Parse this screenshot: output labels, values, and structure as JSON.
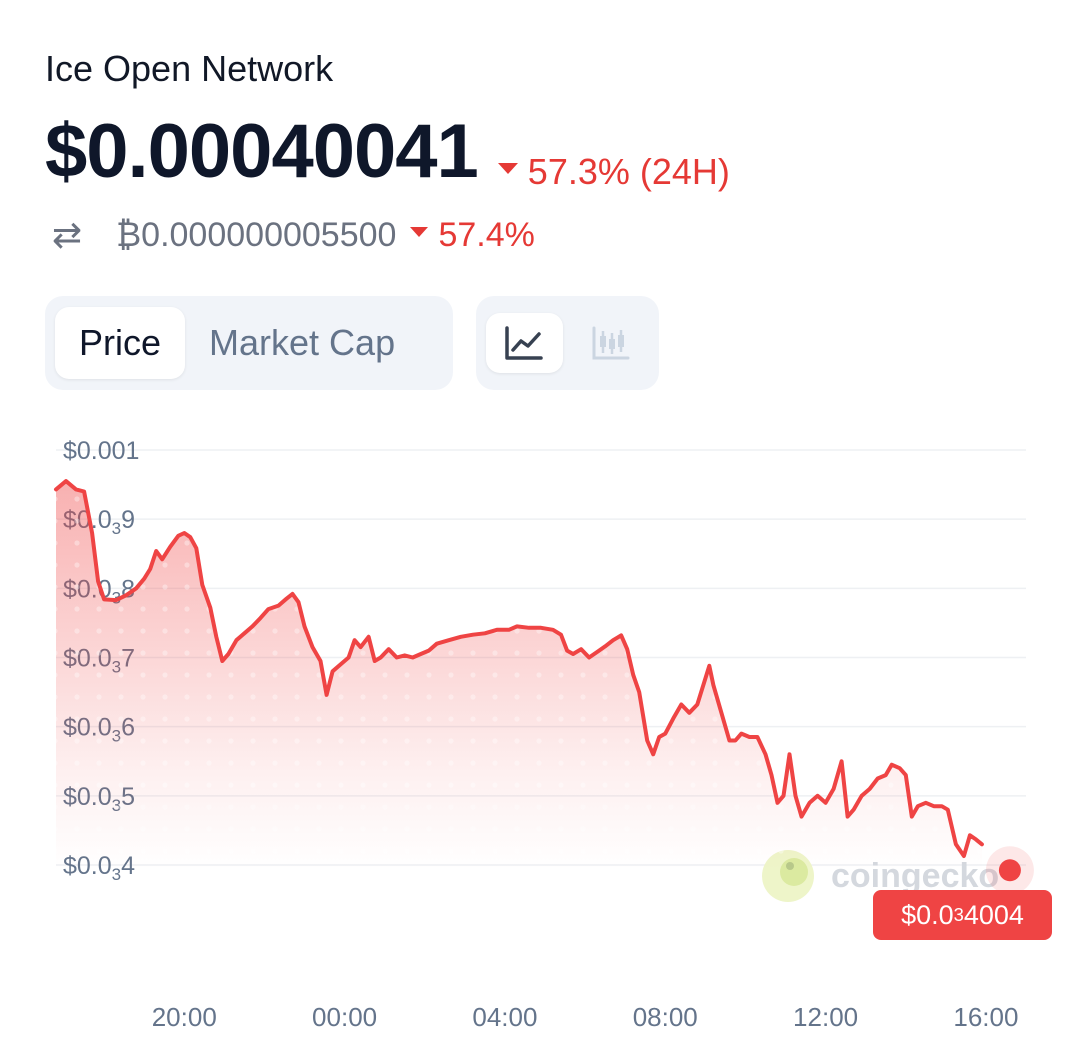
{
  "header": {
    "coin_name": "Ice Open Network",
    "price": "$0.00040041",
    "change_24h": "57.3% (24H)",
    "btc_price": "₿0.000000005500",
    "btc_change": "57.4%"
  },
  "tabs": [
    {
      "label": "Price",
      "active": true
    },
    {
      "label": "Market Cap",
      "active": false
    }
  ],
  "chart_toggles": [
    {
      "icon": "line-chart-icon",
      "active": true
    },
    {
      "icon": "candlestick-chart-icon",
      "active": false
    }
  ],
  "colors": {
    "down": "#e53935",
    "line": "#ef4444",
    "text_muted": "#64748b",
    "segment_bg": "#f1f4f9"
  },
  "watermark": "coingecko",
  "last_price_label": {
    "pre": "$0.0",
    "sub": "3",
    "post": "4004"
  },
  "chart_data": {
    "type": "area",
    "ylim": [
      0.0004,
      0.001
    ],
    "yticks": [
      {
        "value": 0.001,
        "pre": "$0.001",
        "sub": "",
        "post": ""
      },
      {
        "value": 0.0009,
        "pre": "$0.0",
        "sub": "3",
        "post": "9"
      },
      {
        "value": 0.0008,
        "pre": "$0.0",
        "sub": "3",
        "post": "8"
      },
      {
        "value": 0.0007,
        "pre": "$0.0",
        "sub": "3",
        "post": "7"
      },
      {
        "value": 0.0006,
        "pre": "$0.0",
        "sub": "3",
        "post": "6"
      },
      {
        "value": 0.0005,
        "pre": "$0.0",
        "sub": "3",
        "post": "5"
      },
      {
        "value": 0.0004,
        "pre": "$0.0",
        "sub": "3",
        "post": "4"
      }
    ],
    "xticks": [
      {
        "hour": 20,
        "label": "20:00"
      },
      {
        "hour": 24,
        "label": "00:00"
      },
      {
        "hour": 28,
        "label": "04:00"
      },
      {
        "hour": 32,
        "label": "08:00"
      },
      {
        "hour": 36,
        "label": "12:00"
      },
      {
        "hour": 40,
        "label": "16:00"
      }
    ],
    "xlim": [
      16.8,
      41.0
    ],
    "series": [
      {
        "points": [
          [
            16.8,
            0.000943
          ],
          [
            17.05,
            0.000955
          ],
          [
            17.3,
            0.000943
          ],
          [
            17.5,
            0.00094
          ],
          [
            17.7,
            0.00088
          ],
          [
            17.85,
            0.00081
          ],
          [
            18.0,
            0.000784
          ],
          [
            18.3,
            0.000783
          ],
          [
            18.55,
            0.00079
          ],
          [
            18.8,
            0.0008
          ],
          [
            19.0,
            0.000814
          ],
          [
            19.15,
            0.000828
          ],
          [
            19.3,
            0.000854
          ],
          [
            19.45,
            0.000842
          ],
          [
            19.65,
            0.00086
          ],
          [
            19.85,
            0.000876
          ],
          [
            20.0,
            0.00088
          ],
          [
            20.15,
            0.000874
          ],
          [
            20.3,
            0.000858
          ],
          [
            20.45,
            0.000805
          ],
          [
            20.65,
            0.000772
          ],
          [
            20.8,
            0.00073
          ],
          [
            20.95,
            0.000695
          ],
          [
            21.1,
            0.000705
          ],
          [
            21.3,
            0.000725
          ],
          [
            21.5,
            0.000735
          ],
          [
            21.7,
            0.000745
          ],
          [
            21.9,
            0.000757
          ],
          [
            22.1,
            0.00077
          ],
          [
            22.35,
            0.000775
          ],
          [
            22.55,
            0.000785
          ],
          [
            22.7,
            0.000792
          ],
          [
            22.85,
            0.00078
          ],
          [
            23.0,
            0.000745
          ],
          [
            23.2,
            0.000715
          ],
          [
            23.4,
            0.000695
          ],
          [
            23.55,
            0.000646
          ],
          [
            23.7,
            0.00068
          ],
          [
            23.9,
            0.00069
          ],
          [
            24.1,
            0.0007
          ],
          [
            24.25,
            0.000725
          ],
          [
            24.4,
            0.000715
          ],
          [
            24.6,
            0.00073
          ],
          [
            24.75,
            0.000695
          ],
          [
            24.9,
            0.0007
          ],
          [
            25.1,
            0.000712
          ],
          [
            25.3,
            0.0007
          ],
          [
            25.5,
            0.000703
          ],
          [
            25.7,
            0.0007
          ],
          [
            25.9,
            0.000705
          ],
          [
            26.1,
            0.00071
          ],
          [
            26.3,
            0.00072
          ],
          [
            26.6,
            0.000725
          ],
          [
            26.9,
            0.00073
          ],
          [
            27.2,
            0.000733
          ],
          [
            27.5,
            0.000735
          ],
          [
            27.8,
            0.00074
          ],
          [
            28.1,
            0.00074
          ],
          [
            28.3,
            0.000745
          ],
          [
            28.6,
            0.000743
          ],
          [
            28.9,
            0.000743
          ],
          [
            29.2,
            0.00074
          ],
          [
            29.4,
            0.000733
          ],
          [
            29.55,
            0.00071
          ],
          [
            29.7,
            0.000705
          ],
          [
            29.9,
            0.000712
          ],
          [
            30.1,
            0.0007
          ],
          [
            30.3,
            0.000708
          ],
          [
            30.5,
            0.000716
          ],
          [
            30.7,
            0.000725
          ],
          [
            30.9,
            0.000732
          ],
          [
            31.05,
            0.000712
          ],
          [
            31.2,
            0.000675
          ],
          [
            31.35,
            0.00065
          ],
          [
            31.55,
            0.00058
          ],
          [
            31.7,
            0.00056
          ],
          [
            31.85,
            0.000585
          ],
          [
            32.0,
            0.00059
          ],
          [
            32.2,
            0.000612
          ],
          [
            32.4,
            0.000632
          ],
          [
            32.6,
            0.00062
          ],
          [
            32.8,
            0.000632
          ],
          [
            32.95,
            0.00066
          ],
          [
            33.1,
            0.000688
          ],
          [
            33.2,
            0.00066
          ],
          [
            33.4,
            0.00062
          ],
          [
            33.6,
            0.00058
          ],
          [
            33.75,
            0.00058
          ],
          [
            33.9,
            0.00059
          ],
          [
            34.1,
            0.000585
          ],
          [
            34.3,
            0.000585
          ],
          [
            34.5,
            0.00056
          ],
          [
            34.65,
            0.00053
          ],
          [
            34.8,
            0.00049
          ],
          [
            34.95,
            0.0005
          ],
          [
            35.1,
            0.00056
          ],
          [
            35.25,
            0.0005
          ],
          [
            35.4,
            0.00047
          ],
          [
            35.6,
            0.00049
          ],
          [
            35.8,
            0.0005
          ],
          [
            36.0,
            0.00049
          ],
          [
            36.2,
            0.00051
          ],
          [
            36.4,
            0.00055
          ],
          [
            36.55,
            0.00047
          ],
          [
            36.7,
            0.00048
          ],
          [
            36.9,
            0.0005
          ],
          [
            37.1,
            0.00051
          ],
          [
            37.3,
            0.000525
          ],
          [
            37.5,
            0.00053
          ],
          [
            37.65,
            0.000545
          ],
          [
            37.85,
            0.00054
          ],
          [
            38.0,
            0.00053
          ],
          [
            38.15,
            0.00047
          ],
          [
            38.3,
            0.000485
          ],
          [
            38.5,
            0.00049
          ],
          [
            38.7,
            0.000485
          ],
          [
            38.9,
            0.000485
          ],
          [
            39.05,
            0.00048
          ],
          [
            39.25,
            0.00043
          ],
          [
            39.45,
            0.000413
          ],
          [
            39.6,
            0.000443
          ],
          [
            39.75,
            0.000437
          ],
          [
            39.9,
            0.00043
          ]
        ]
      }
    ]
  }
}
